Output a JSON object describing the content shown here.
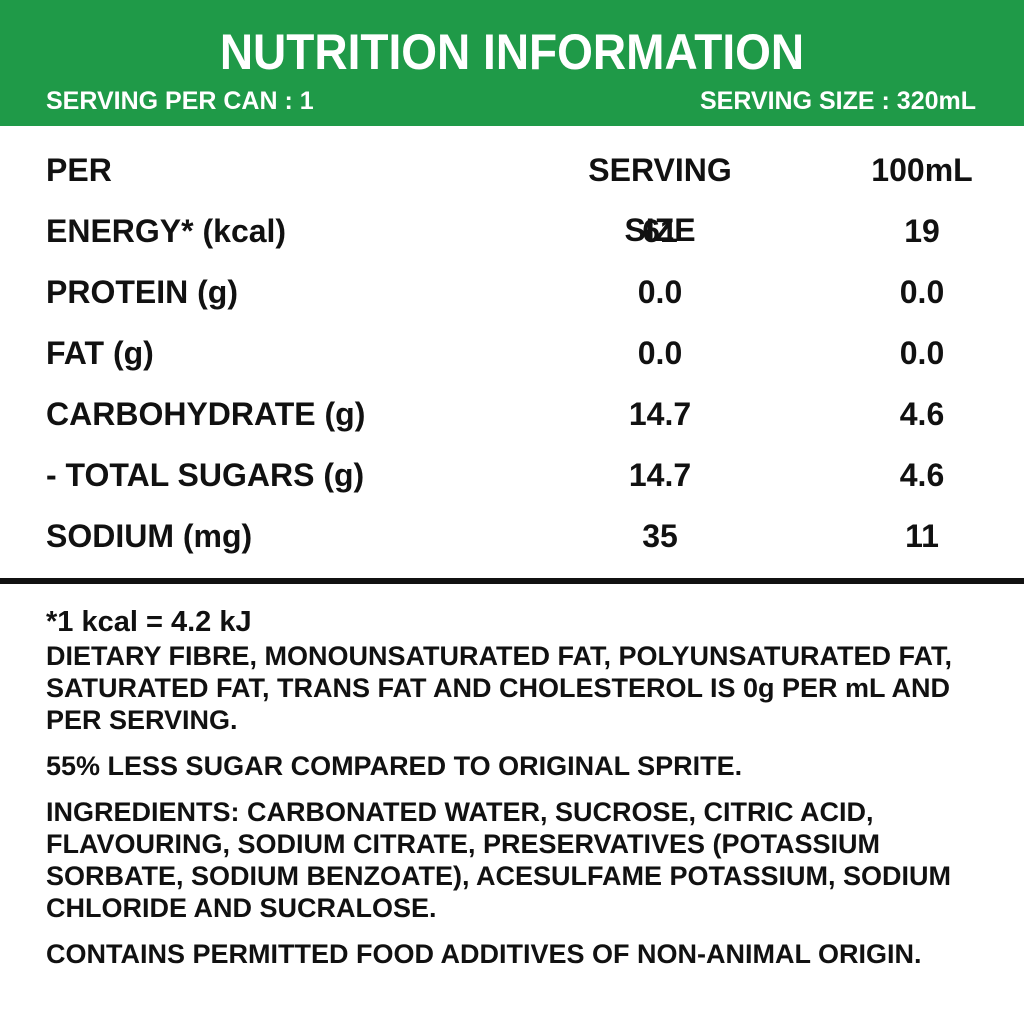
{
  "header": {
    "title": "NUTRITION INFORMATION",
    "serving_per_can": "SERVING PER CAN : 1",
    "serving_size": "SERVING SIZE : 320mL",
    "bg_color": "#1f9a48"
  },
  "table": {
    "headers": [
      "PER",
      "SERVING SIZE",
      "100mL"
    ],
    "rows": [
      {
        "label": "ENERGY* (kcal)",
        "serving": "61",
        "per100": "19"
      },
      {
        "label": "PROTEIN (g)",
        "serving": "0.0",
        "per100": "0.0"
      },
      {
        "label": "FAT (g)",
        "serving": "0.0",
        "per100": "0.0"
      },
      {
        "label": "CARBOHYDRATE (g)",
        "serving": "14.7",
        "per100": "4.6"
      },
      {
        "label": "- TOTAL SUGARS (g)",
        "serving": "14.7",
        "per100": "4.6"
      },
      {
        "label": "SODIUM (mg)",
        "serving": "35",
        "per100": "11"
      }
    ]
  },
  "notes": {
    "kcal": "*1 kcal = 4.2 kJ",
    "dietary": "DIETARY FIBRE, MONOUNSATURATED FAT, POLYUNSATURATED FAT, SATURATED FAT, TRANS FAT AND CHOLESTEROL IS 0g PER mL AND PER SERVING.",
    "less_sugar": "55% LESS SUGAR COMPARED TO ORIGINAL SPRITE.",
    "ingredients": "INGREDIENTS: CARBONATED WATER, SUCROSE, CITRIC ACID, FLAVOURING, SODIUM CITRATE, PRESERVATIVES (POTASSIUM SORBATE, SODIUM BENZOATE), ACESULFAME POTASSIUM, SODIUM CHLORIDE AND SUCRALOSE.",
    "additives": "CONTAINS PERMITTED FOOD ADDITIVES OF NON-ANIMAL ORIGIN."
  }
}
